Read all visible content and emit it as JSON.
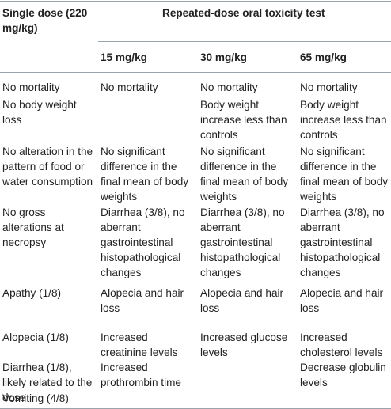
{
  "table": {
    "header": {
      "col0": "Single dose (220 mg/kg)",
      "group": "Repeated-dose oral toxicity test",
      "col1": "15 mg/kg",
      "col2": "30 mg/kg",
      "col3": "65 mg/kg"
    },
    "rows": [
      {
        "c0": "No mortality",
        "c1": "No mortality",
        "c2": "No mortality",
        "c3": "No mortality"
      },
      {
        "c0": "No body weight loss",
        "c1": "",
        "c2": "Body weight increase less than controls",
        "c3": "Body weight increase less than controls"
      },
      {
        "c0": "No alteration in the pattern of food or water consumption",
        "c1": "No significant difference in the final mean of body weights",
        "c2": "No significant difference in the final mean of body weights",
        "c3": "No significant difference in the final mean of body weights"
      },
      {
        "c0": "No gross alterations at necropsy",
        "c1": "Diarrhea (3/8), no aberrant gastrointestinal histopathological changes",
        "c2": "Diarrhea (3/8), no aberrant gastrointestinal histopathological changes",
        "c3": "Diarrhea (3/8), no aberrant gastrointestinal histopathological changes"
      },
      {
        "c0": "Apathy (1/8)",
        "c1": "Alopecia and hair loss",
        "c2": "Alopecia and hair loss",
        "c3": "Alopecia and hair loss"
      },
      {
        "c0": "Alopecia (1/8)",
        "c1": "Increased creatinine levels",
        "c2": "Increased glucose levels",
        "c3": "Increased cholesterol levels"
      },
      {
        "c0": "Diarrhea (1/8), likely related to the dose",
        "c1": "Increased prothrombin time",
        "c2": "",
        "c3": "Decrease globulin levels"
      },
      {
        "c0": "Vomiting (4/8)",
        "c1": "",
        "c2": "",
        "c3": ""
      }
    ]
  }
}
